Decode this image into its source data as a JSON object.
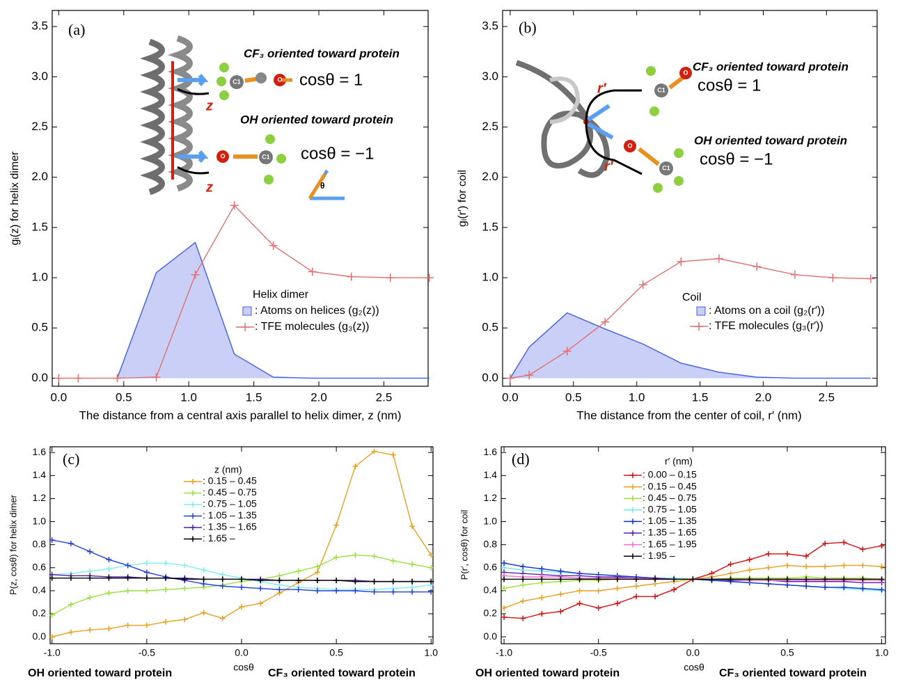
{
  "chart_data": [
    {
      "type": "line",
      "panel": "(a)",
      "x_label": "The distance from a central axis parallel to helix dimer, z  (nm)",
      "y_label": "gᵢ(z) for helix dimer",
      "xlim": [
        -0.05,
        2.84
      ],
      "ylim": [
        -0.08,
        3.66
      ],
      "xticks": [
        {
          "value": 0,
          "label": "0.0"
        },
        0.5,
        {
          "value": 1,
          "label": "1.0"
        },
        1.5,
        {
          "value": 2,
          "label": "2.0"
        },
        2.5
      ],
      "yticks": [
        {
          "value": 0,
          "label": "0.0"
        },
        0.5,
        {
          "value": 1,
          "label": "1.0"
        },
        1.5,
        {
          "value": 2,
          "label": "2.0"
        },
        2.5,
        {
          "value": 3,
          "label": "3.0"
        },
        3.5
      ],
      "legend_title": "Helix dimer",
      "annotations": [
        "CF₃ oriented toward protein",
        "cosθ = 1",
        "OH oriented toward protein",
        "cosθ = −1",
        "z",
        "z",
        "θ",
        "C1",
        "O",
        "O",
        "C1"
      ],
      "series": [
        {
          "name": ": Atoms on helices (g₂(z))",
          "kind": "area",
          "color": "#3f5fe6",
          "fill": "#c9cff7",
          "x": [
            0.45,
            0.75,
            1.05,
            1.35,
            1.65,
            1.95,
            2.25,
            2.55,
            2.85
          ],
          "values": [
            0,
            1.05,
            1.35,
            0.24,
            0.01,
            0,
            0,
            0,
            0
          ]
        },
        {
          "name": ": TFE molecules (g₃(z))",
          "kind": "line",
          "marker": "+",
          "color": "#e07070",
          "x": [
            0,
            0.15,
            0.45,
            0.75,
            1.05,
            1.35,
            1.65,
            1.95,
            2.25,
            2.55,
            2.85
          ],
          "values": [
            0,
            0,
            0,
            0.01,
            1.03,
            1.72,
            1.32,
            1.06,
            1.01,
            1.0,
            1.0
          ]
        }
      ]
    },
    {
      "type": "line",
      "panel": "(b)",
      "x_label": "The distance from the center of coil, r′  (nm)",
      "y_label": "gᵢ(r′) for coil",
      "xlim": [
        -0.06,
        2.9
      ],
      "ylim": [
        -0.08,
        3.66
      ],
      "xticks": [
        {
          "value": 0,
          "label": "0.0"
        },
        0.5,
        {
          "value": 1,
          "label": "1.0"
        },
        1.5,
        {
          "value": 2,
          "label": "2.0"
        },
        2.5
      ],
      "yticks": [
        {
          "value": 0,
          "label": "0.0"
        },
        0.5,
        {
          "value": 1,
          "label": "1.0"
        },
        1.5,
        {
          "value": 2,
          "label": "2.0"
        },
        2.5,
        {
          "value": 3,
          "label": "3.0"
        },
        3.5
      ],
      "legend_title": "Coil",
      "annotations": [
        "CF₃ oriented toward protein",
        "cosθ = 1",
        "OH oriented toward protein",
        "cosθ = −1",
        "r′",
        "r′",
        "C1",
        "O",
        "O",
        "C1"
      ],
      "series": [
        {
          "name": ": Atoms on a coil (g₂(r′))",
          "kind": "area",
          "color": "#3f5fe6",
          "fill": "#c9cff7",
          "x": [
            0,
            0.15,
            0.45,
            0.75,
            1.05,
            1.35,
            1.65,
            1.95,
            2.25,
            2.55,
            2.85
          ],
          "values": [
            0,
            0.31,
            0.65,
            0.49,
            0.34,
            0.15,
            0.06,
            0.01,
            0,
            0,
            0
          ]
        },
        {
          "name": ": TFE molecules (g₃(r′))",
          "kind": "line",
          "marker": "+",
          "color": "#e07070",
          "x": [
            0,
            0.15,
            0.45,
            0.75,
            1.05,
            1.35,
            1.65,
            1.95,
            2.25,
            2.55,
            2.85
          ],
          "values": [
            0,
            0.03,
            0.27,
            0.56,
            0.93,
            1.16,
            1.19,
            1.11,
            1.03,
            1.0,
            0.99
          ]
        }
      ]
    },
    {
      "type": "line",
      "panel": "(c)",
      "x_label": "cosθ",
      "y_label": "P(z, cosθ) for helix dimer",
      "annotations": [
        "OH oriented toward protein",
        "CF₃ oriented toward protein"
      ],
      "xlim": [
        -1.01,
        1.01
      ],
      "ylim": [
        -0.06,
        1.65
      ],
      "xticks": [
        {
          "value": -1,
          "label": "-1.0"
        },
        -0.5,
        {
          "value": 0,
          "label": "0.0"
        },
        0.5,
        {
          "value": 1,
          "label": "1.0"
        }
      ],
      "yticks": [
        {
          "value": 0,
          "label": "0.0"
        },
        0.2,
        0.4,
        0.6,
        0.8,
        {
          "value": 1,
          "label": "1.0"
        },
        1.2,
        1.4,
        1.6
      ],
      "legend_title": "z  (nm)",
      "x": [
        -1,
        -0.9,
        -0.8,
        -0.7,
        -0.6,
        -0.5,
        -0.4,
        -0.3,
        -0.2,
        -0.1,
        0,
        0.1,
        0.2,
        0.3,
        0.4,
        0.5,
        0.6,
        0.7,
        0.8,
        0.9,
        1
      ],
      "series": [
        {
          "name": ": 0.15 – 0.45",
          "kind": "line",
          "marker": "+",
          "color": "#e8a020",
          "values": [
            0.0,
            0.04,
            0.06,
            0.07,
            0.1,
            0.1,
            0.13,
            0.15,
            0.21,
            0.16,
            0.26,
            0.29,
            0.38,
            0.47,
            0.56,
            0.97,
            1.48,
            1.61,
            1.58,
            0.96,
            0.71
          ]
        },
        {
          "name": ": 0.45 – 0.75",
          "kind": "line",
          "marker": "+",
          "color": "#99e040",
          "values": [
            0.19,
            0.28,
            0.34,
            0.38,
            0.4,
            0.4,
            0.41,
            0.42,
            0.43,
            0.45,
            0.48,
            0.5,
            0.53,
            0.57,
            0.61,
            0.69,
            0.71,
            0.7,
            0.66,
            0.63,
            0.6
          ]
        },
        {
          "name": ": 0.75 – 1.05",
          "kind": "line",
          "marker": "+",
          "color": "#80eef0",
          "values": [
            0.54,
            0.55,
            0.57,
            0.59,
            0.62,
            0.64,
            0.64,
            0.62,
            0.58,
            0.54,
            0.51,
            0.48,
            0.45,
            0.43,
            0.42,
            0.41,
            0.41,
            0.41,
            0.42,
            0.43,
            0.45
          ]
        },
        {
          "name": ": 1.05 – 1.35",
          "kind": "line",
          "marker": "+",
          "color": "#2040e0",
          "values": [
            0.84,
            0.81,
            0.74,
            0.67,
            0.62,
            0.56,
            0.52,
            0.49,
            0.46,
            0.44,
            0.43,
            0.42,
            0.41,
            0.41,
            0.4,
            0.4,
            0.4,
            0.39,
            0.39,
            0.39,
            0.39
          ]
        },
        {
          "name": ": 1.35 – 1.65",
          "kind": "line",
          "marker": "+",
          "color": "#5020a0",
          "values": [
            0.54,
            0.53,
            0.53,
            0.52,
            0.52,
            0.51,
            0.51,
            0.51,
            0.5,
            0.5,
            0.5,
            0.5,
            0.49,
            0.49,
            0.49,
            0.49,
            0.49,
            0.48,
            0.48,
            0.48,
            0.48
          ]
        },
        {
          "name": ": 1.65  –",
          "kind": "line",
          "marker": "+",
          "color": "#000000",
          "values": [
            0.51,
            0.51,
            0.51,
            0.51,
            0.51,
            0.51,
            0.51,
            0.5,
            0.5,
            0.5,
            0.5,
            0.49,
            0.49,
            0.49,
            0.49,
            0.49,
            0.48,
            0.48,
            0.48,
            0.48,
            0.48
          ]
        }
      ]
    },
    {
      "type": "line",
      "panel": "(d)",
      "x_label": "cosθ",
      "y_label": "P(r′, cosθ) for coil",
      "annotations": [
        "OH oriented toward protein",
        "CF₃ oriented toward protein"
      ],
      "xlim": [
        -1.015,
        1.02
      ],
      "ylim": [
        -0.06,
        1.65
      ],
      "xticks": [
        {
          "value": -1,
          "label": "-1.0"
        },
        -0.5,
        {
          "value": 0,
          "label": "0.0"
        },
        0.5,
        {
          "value": 1,
          "label": "1.0"
        }
      ],
      "yticks": [
        {
          "value": 0,
          "label": "0.0"
        },
        0.2,
        0.4,
        0.6,
        0.8,
        {
          "value": 1,
          "label": "1.0"
        },
        1.2,
        1.4,
        1.6
      ],
      "legend_title": "r′  (nm)",
      "x": [
        -1,
        -0.9,
        -0.8,
        -0.7,
        -0.6,
        -0.5,
        -0.4,
        -0.3,
        -0.2,
        -0.1,
        0,
        0.1,
        0.2,
        0.3,
        0.4,
        0.5,
        0.6,
        0.7,
        0.8,
        0.9,
        1
      ],
      "series": [
        {
          "name": ": 0.00 – 0.15",
          "kind": "line",
          "marker": "+",
          "color": "#d01010",
          "values": [
            0.17,
            0.16,
            0.2,
            0.22,
            0.29,
            0.25,
            0.29,
            0.35,
            0.35,
            0.41,
            0.5,
            0.55,
            0.63,
            0.67,
            0.72,
            0.72,
            0.7,
            0.81,
            0.82,
            0.76,
            0.79
          ]
        },
        {
          "name": ": 0.15 – 0.45",
          "kind": "line",
          "marker": "+",
          "color": "#e8a020",
          "values": [
            0.25,
            0.31,
            0.34,
            0.37,
            0.4,
            0.4,
            0.42,
            0.44,
            0.46,
            0.48,
            0.5,
            0.52,
            0.55,
            0.58,
            0.6,
            0.62,
            0.61,
            0.61,
            0.62,
            0.62,
            0.61
          ]
        },
        {
          "name": ": 0.45 – 0.75",
          "kind": "line",
          "marker": "+",
          "color": "#a0e030",
          "values": [
            0.42,
            0.45,
            0.47,
            0.48,
            0.49,
            0.49,
            0.5,
            0.5,
            0.5,
            0.5,
            0.5,
            0.5,
            0.51,
            0.51,
            0.51,
            0.51,
            0.52,
            0.51,
            0.51,
            0.51,
            0.5
          ]
        },
        {
          "name": ": 0.75 – 1.05",
          "kind": "line",
          "marker": "+",
          "color": "#70e8f0",
          "values": [
            0.6,
            0.58,
            0.57,
            0.56,
            0.55,
            0.54,
            0.53,
            0.52,
            0.51,
            0.51,
            0.5,
            0.49,
            0.48,
            0.47,
            0.46,
            0.45,
            0.44,
            0.43,
            0.42,
            0.41,
            0.4
          ]
        },
        {
          "name": ": 1.05 – 1.35",
          "kind": "line",
          "marker": "+",
          "color": "#1030d0",
          "values": [
            0.64,
            0.61,
            0.59,
            0.57,
            0.55,
            0.54,
            0.53,
            0.52,
            0.51,
            0.5,
            0.5,
            0.49,
            0.48,
            0.47,
            0.46,
            0.45,
            0.44,
            0.43,
            0.43,
            0.42,
            0.41
          ]
        },
        {
          "name": ": 1.35 – 1.65",
          "kind": "line",
          "marker": "+",
          "color": "#6020b0",
          "values": [
            0.56,
            0.55,
            0.54,
            0.53,
            0.53,
            0.52,
            0.52,
            0.51,
            0.51,
            0.5,
            0.5,
            0.5,
            0.49,
            0.49,
            0.49,
            0.48,
            0.48,
            0.48,
            0.48,
            0.47,
            0.47
          ]
        },
        {
          "name": ": 1.65 – 1.95",
          "kind": "line",
          "marker": "+",
          "color": "#f070d0",
          "values": [
            0.53,
            0.52,
            0.52,
            0.52,
            0.51,
            0.51,
            0.51,
            0.51,
            0.5,
            0.5,
            0.5,
            0.5,
            0.5,
            0.49,
            0.49,
            0.49,
            0.49,
            0.49,
            0.49,
            0.49,
            0.49
          ]
        },
        {
          "name": ": 1.95  –",
          "kind": "line",
          "marker": "+",
          "color": "#000000",
          "values": [
            0.5,
            0.5,
            0.5,
            0.5,
            0.5,
            0.5,
            0.5,
            0.5,
            0.5,
            0.5,
            0.5,
            0.5,
            0.5,
            0.5,
            0.5,
            0.5,
            0.5,
            0.5,
            0.5,
            0.5,
            0.5
          ]
        }
      ]
    }
  ]
}
